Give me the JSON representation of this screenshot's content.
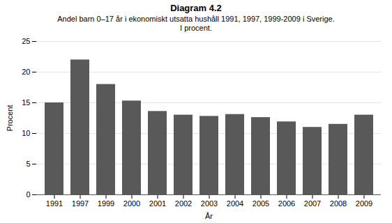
{
  "chart_data": {
    "type": "bar",
    "title": "Diagram 4.2",
    "subtitle": [
      "Andel barn 0–17 år i ekonomiskt utsatta hushåll 1991, 1997, 1999-2009 i Sverige.",
      "I procent."
    ],
    "xlabel": "År",
    "ylabel": "Procent",
    "categories": [
      "1991",
      "1997",
      "1999",
      "2000",
      "2001",
      "2002",
      "2003",
      "2004",
      "2005",
      "2006",
      "2007",
      "2008",
      "2009"
    ],
    "values": [
      15.0,
      22.0,
      18.0,
      15.3,
      13.6,
      13.0,
      12.8,
      13.1,
      12.6,
      11.9,
      11.0,
      11.5,
      13.0
    ],
    "color": "#595959",
    "ylim": [
      0,
      25
    ],
    "yticks": [
      0,
      5,
      10,
      15,
      20,
      25
    ],
    "grid": true
  }
}
